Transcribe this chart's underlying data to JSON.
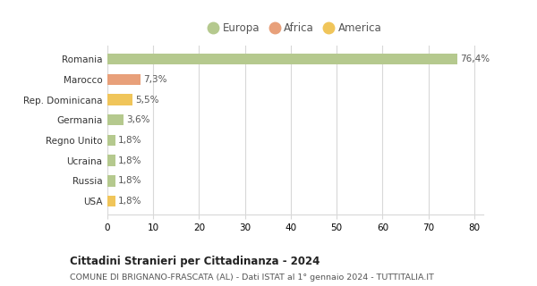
{
  "categories": [
    "Romania",
    "Marocco",
    "Rep. Dominicana",
    "Germania",
    "Regno Unito",
    "Ucraina",
    "Russia",
    "USA"
  ],
  "values": [
    76.4,
    7.3,
    5.5,
    3.6,
    1.8,
    1.8,
    1.8,
    1.8
  ],
  "labels": [
    "76,4%",
    "7,3%",
    "5,5%",
    "3,6%",
    "1,8%",
    "1,8%",
    "1,8%",
    "1,8%"
  ],
  "colors": [
    "#b5c98e",
    "#e8a07a",
    "#f0c55a",
    "#b5c98e",
    "#b5c98e",
    "#b5c98e",
    "#b5c98e",
    "#f0c55a"
  ],
  "legend": [
    {
      "label": "Europa",
      "color": "#b5c98e"
    },
    {
      "label": "Africa",
      "color": "#e8a07a"
    },
    {
      "label": "America",
      "color": "#f0c55a"
    }
  ],
  "title": "Cittadini Stranieri per Cittadinanza - 2024",
  "subtitle": "COMUNE DI BRIGNANO-FRASCATA (AL) - Dati ISTAT al 1° gennaio 2024 - TUTTITALIA.IT",
  "xlim": [
    0,
    82
  ],
  "xticks": [
    0,
    10,
    20,
    30,
    40,
    50,
    60,
    70,
    80
  ],
  "background_color": "#ffffff",
  "grid_color": "#d8d8d8"
}
